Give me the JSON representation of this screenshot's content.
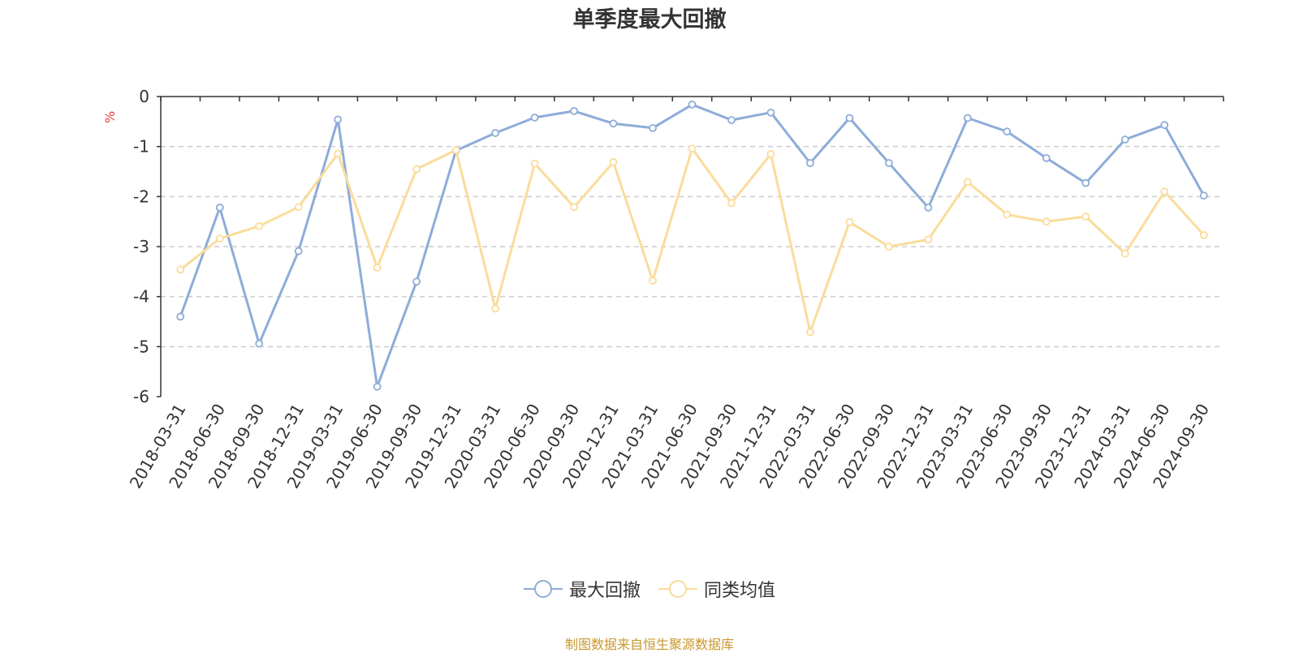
{
  "colors": {
    "series1": "#8eacd8",
    "series2": "#fadc9b",
    "axis": "#333333",
    "grid": "#cccccc",
    "unit": "#e8413c",
    "source": "#c9972e"
  },
  "chart_data": {
    "type": "line",
    "title": "单季度最大回撤",
    "ylabel": "%",
    "xlabel": "",
    "ylim": [
      -6,
      0
    ],
    "yticks": [
      0,
      -1,
      -2,
      -3,
      -4,
      -5,
      -6
    ],
    "grid": true,
    "legend_position": "bottom-center",
    "categories": [
      "2018-03-31",
      "2018-06-30",
      "2018-09-30",
      "2018-12-31",
      "2019-03-31",
      "2019-06-30",
      "2019-09-30",
      "2019-12-31",
      "2020-03-31",
      "2020-06-30",
      "2020-09-30",
      "2020-12-31",
      "2021-03-31",
      "2021-06-30",
      "2021-09-30",
      "2021-12-31",
      "2022-03-31",
      "2022-06-30",
      "2022-09-30",
      "2022-12-31",
      "2023-03-31",
      "2023-06-30",
      "2023-09-30",
      "2023-12-31",
      "2024-03-31",
      "2024-06-30",
      "2024-09-30"
    ],
    "series": [
      {
        "name": "最大回撤",
        "values": [
          -4.4,
          -2.22,
          -4.94,
          -3.09,
          -0.46,
          -5.8,
          -3.7,
          -1.08,
          -0.73,
          -0.42,
          -0.29,
          -0.54,
          -0.63,
          -0.16,
          -0.47,
          -0.32,
          -1.33,
          -0.43,
          -1.33,
          -2.22,
          -0.43,
          -0.7,
          -1.23,
          -1.73,
          -0.86,
          -0.57,
          -1.98
        ]
      },
      {
        "name": "同类均值",
        "values": [
          -3.46,
          -2.84,
          -2.59,
          -2.21,
          -1.14,
          -3.42,
          -1.45,
          -1.07,
          -4.24,
          -1.34,
          -2.21,
          -1.31,
          -3.68,
          -1.04,
          -2.13,
          -1.15,
          -4.71,
          -2.51,
          -3.0,
          -2.86,
          -1.71,
          -2.36,
          -2.5,
          -2.4,
          -3.14,
          -1.9,
          -2.77
        ]
      }
    ]
  },
  "source_text": "制图数据来自恒生聚源数据库"
}
